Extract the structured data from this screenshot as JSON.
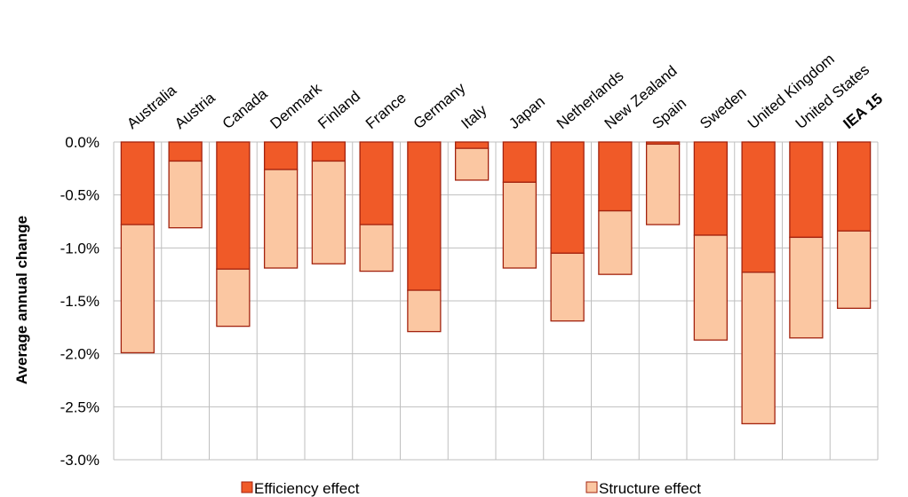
{
  "chart_data": {
    "type": "bar",
    "stacked": true,
    "ylabel": "Average annual change",
    "ylim": [
      -3.0,
      0.0
    ],
    "yticks": [
      0.0,
      -0.5,
      -1.0,
      -1.5,
      -2.0,
      -2.5,
      -3.0
    ],
    "ytick_labels": [
      "0.0%",
      "-0.5%",
      "-1.0%",
      "-1.5%",
      "-2.0%",
      "-2.5%",
      "-3.0%"
    ],
    "grid": true,
    "legend_position": "bottom",
    "categories": [
      "Australia",
      "Austria",
      "Canada",
      "Denmark",
      "Finland",
      "France",
      "Germany",
      "Italy",
      "Japan",
      "Netherlands",
      "New Zealand",
      "Spain",
      "Sweden",
      "United Kingdom",
      "United States",
      "IEA 15"
    ],
    "highlight_category": "IEA 15",
    "series": [
      {
        "name": "Efficiency effect",
        "color": "#F05A28",
        "values": [
          -0.78,
          -0.18,
          -1.2,
          -0.26,
          -0.18,
          -0.78,
          -1.4,
          -0.06,
          -0.38,
          -1.05,
          -0.65,
          -0.02,
          -0.88,
          -1.23,
          -0.9,
          -0.84
        ]
      },
      {
        "name": "Structure effect",
        "color": "#FBC7A2",
        "values": [
          -1.21,
          -0.63,
          -0.54,
          -0.93,
          -0.97,
          -0.44,
          -0.39,
          -0.3,
          -0.81,
          -0.64,
          -0.6,
          -0.76,
          -0.99,
          -1.43,
          -0.95,
          -0.73
        ]
      }
    ]
  },
  "colors": {
    "efficiency": "#F05A28",
    "structure": "#FBC7A2",
    "bar_edge": "#A3230F",
    "highlight_label": "#9B1B1B",
    "grid": "#BFBFBF"
  }
}
